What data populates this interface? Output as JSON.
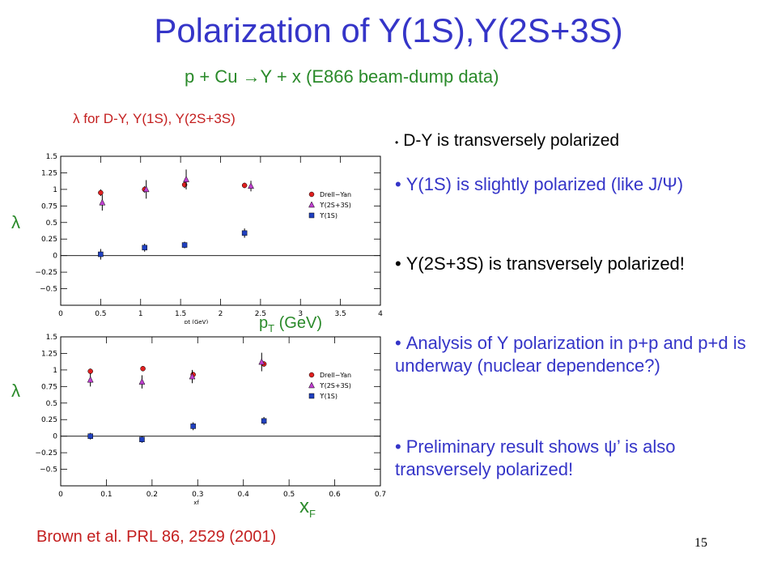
{
  "slide": {
    "title": "Polarization of Y(1S),Y(2S+3S)",
    "subtitle": "p + Cu →Y + x (E866 beam-dump data)",
    "caption": "λ for D-Y, Y(1S), Y(2S+3S)",
    "lambda_label_top": "λ",
    "lambda_label_bottom": "λ",
    "pt_label_main": "p",
    "pt_label_sub": "T",
    "pt_label_unit": " (GeV)",
    "xf_label_main": "x",
    "xf_label_sub": "F",
    "reference": "Brown et al. PRL 86, 2529 (2001)",
    "page_number": "15"
  },
  "bullets": [
    {
      "text": "D-Y is transversely polarized",
      "color": "#000000"
    },
    {
      "text": "Y(1S) is slightly polarized (like J/Ψ)",
      "color": "#3535c8"
    },
    {
      "text": "Y(2S+3S) is transversely polarized!",
      "color": "#000000"
    },
    {
      "text": "Analysis of Y polarization in p+p and p+d is underway (nuclear dependence?)",
      "color": "#3535c8"
    },
    {
      "text": "Preliminary result shows ψ’ is also transversely polarized!",
      "color": "#3535c8"
    }
  ],
  "chart_data": [
    {
      "type": "scatter",
      "xlabel": "pt (GeV)",
      "ylabel": "",
      "xlim": [
        0,
        4
      ],
      "ylim": [
        -0.75,
        1.5
      ],
      "x_ticks": [
        0,
        0.5,
        1,
        1.5,
        2,
        2.5,
        3,
        3.5,
        4
      ],
      "x_tick_labels": [
        "0",
        "0.5",
        "1",
        "1.5",
        "2",
        "2.5",
        "3",
        "3.5",
        "4"
      ],
      "y_ticks": [
        -0.5,
        -0.25,
        0,
        0.25,
        0.5,
        0.75,
        1,
        1.25,
        1.5
      ],
      "y_tick_labels": [
        "−0.5",
        "−0.25",
        "0",
        "0.25",
        "0.5",
        "0.75",
        "1",
        "1.25",
        "1.5"
      ],
      "legend_position": "right",
      "series": [
        {
          "name": "Drell−Yan",
          "marker": "circle",
          "color": "#e02020",
          "x": [
            0.5,
            1.05,
            1.55,
            2.3
          ],
          "y": [
            0.95,
            1.0,
            1.07,
            1.06
          ],
          "err": [
            0.05,
            0.05,
            0.05,
            0.04
          ]
        },
        {
          "name": "ϒ(2S+3S)",
          "marker": "triangle",
          "color": "#c040d0",
          "x": [
            0.52,
            1.07,
            1.57,
            2.38
          ],
          "y": [
            0.8,
            1.0,
            1.15,
            1.05
          ],
          "err": [
            0.12,
            0.14,
            0.15,
            0.08
          ]
        },
        {
          "name": "ϒ(1S)",
          "marker": "square",
          "color": "#2040c0",
          "x": [
            0.5,
            1.05,
            1.55,
            2.3
          ],
          "y": [
            0.02,
            0.12,
            0.16,
            0.34
          ],
          "err": [
            0.08,
            0.06,
            0.05,
            0.07
          ]
        }
      ]
    },
    {
      "type": "scatter",
      "xlabel": "xf",
      "ylabel": "",
      "xlim": [
        0,
        0.7
      ],
      "ylim": [
        -0.75,
        1.5
      ],
      "x_ticks": [
        0,
        0.1,
        0.2,
        0.3,
        0.4,
        0.5,
        0.6,
        0.7
      ],
      "x_tick_labels": [
        "0",
        "0.1",
        "0.2",
        "0.3",
        "0.4",
        "0.5",
        "0.6",
        "0.7"
      ],
      "y_ticks": [
        -0.5,
        -0.25,
        0,
        0.25,
        0.5,
        0.75,
        1,
        1.25,
        1.5
      ],
      "y_tick_labels": [
        "−0.5",
        "−0.25",
        "0",
        "0.25",
        "0.5",
        "0.75",
        "1",
        "1.25",
        "1.5"
      ],
      "legend_position": "right",
      "series": [
        {
          "name": "Drell−Yan",
          "marker": "circle",
          "color": "#e02020",
          "x": [
            0.065,
            0.18,
            0.29,
            0.445
          ],
          "y": [
            0.98,
            1.02,
            0.93,
            1.09
          ],
          "err": [
            0.04,
            0.04,
            0.04,
            0.04
          ]
        },
        {
          "name": "ϒ(2S+3S)",
          "marker": "triangle",
          "color": "#c040d0",
          "x": [
            0.065,
            0.178,
            0.288,
            0.44
          ],
          "y": [
            0.85,
            0.82,
            0.9,
            1.12
          ],
          "err": [
            0.1,
            0.1,
            0.1,
            0.14
          ]
        },
        {
          "name": "ϒ(1S)",
          "marker": "square",
          "color": "#2040c0",
          "x": [
            0.065,
            0.178,
            0.29,
            0.445
          ],
          "y": [
            0.0,
            -0.05,
            0.15,
            0.23
          ],
          "err": [
            0.05,
            0.05,
            0.06,
            0.06
          ]
        }
      ]
    }
  ]
}
